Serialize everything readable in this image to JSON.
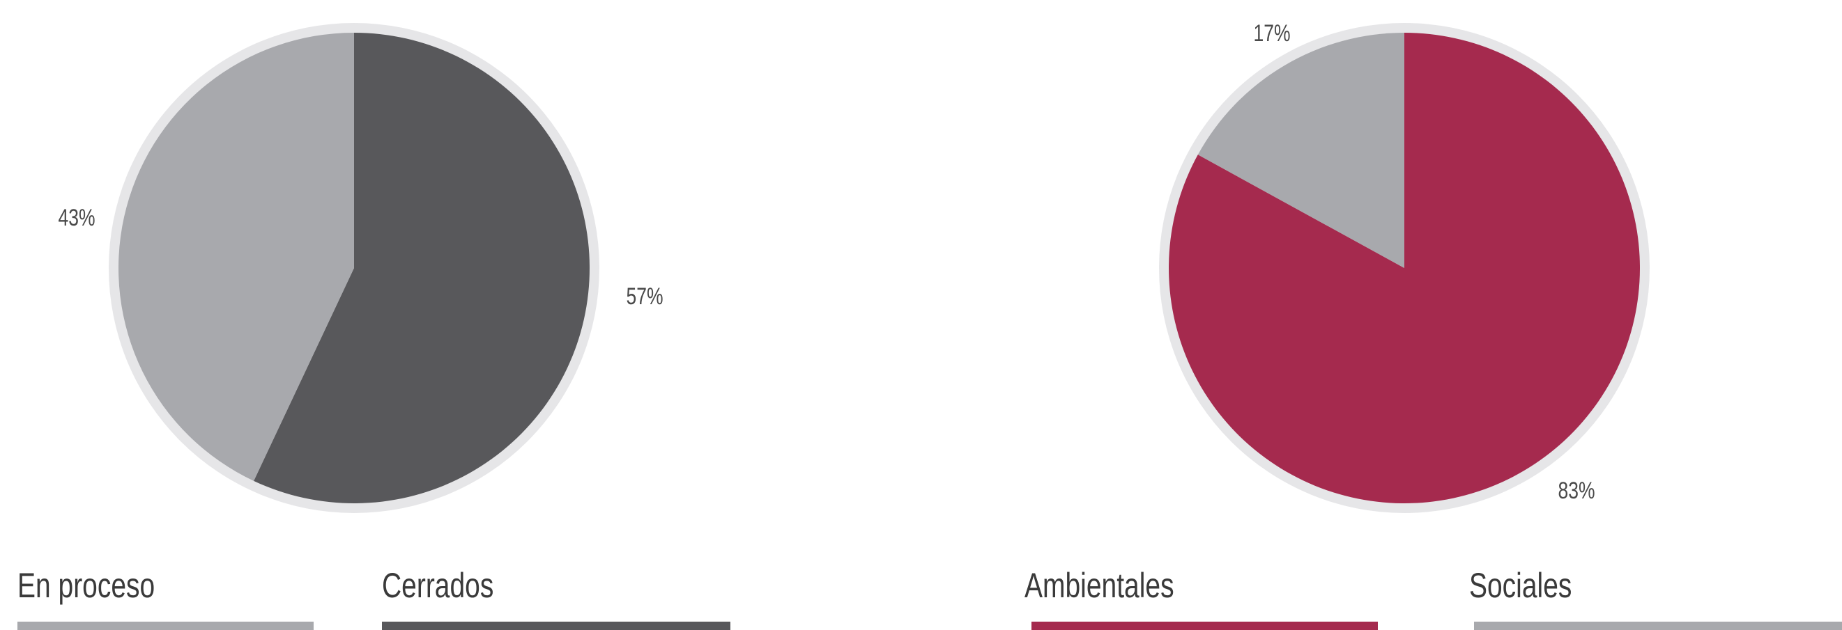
{
  "chart_data": [
    {
      "type": "pie",
      "slices": [
        {
          "label": "Cerrados",
          "value": 57,
          "value_label": "57%",
          "color": "#58585b"
        },
        {
          "label": "En proceso",
          "value": 43,
          "value_label": "43%",
          "color": "#a8a9ad"
        }
      ],
      "legend": [
        {
          "label": "En proceso",
          "color": "#a8a9ad"
        },
        {
          "label": "Cerrados",
          "color": "#58585b"
        }
      ],
      "legend_position": "bottom",
      "ring_color": "#e6e6e8"
    },
    {
      "type": "pie",
      "slices": [
        {
          "label": "Ambientales",
          "value": 83,
          "value_label": "83%",
          "color": "#a52a4e"
        },
        {
          "label": "Sociales",
          "value": 17,
          "value_label": "17%",
          "color": "#a8a9ad"
        }
      ],
      "legend": [
        {
          "label": "Ambientales",
          "color": "#a52a4e"
        },
        {
          "label": "Sociales",
          "color": "#a8a9ad"
        }
      ],
      "legend_position": "bottom",
      "ring_color": "#e6e6e8"
    }
  ]
}
